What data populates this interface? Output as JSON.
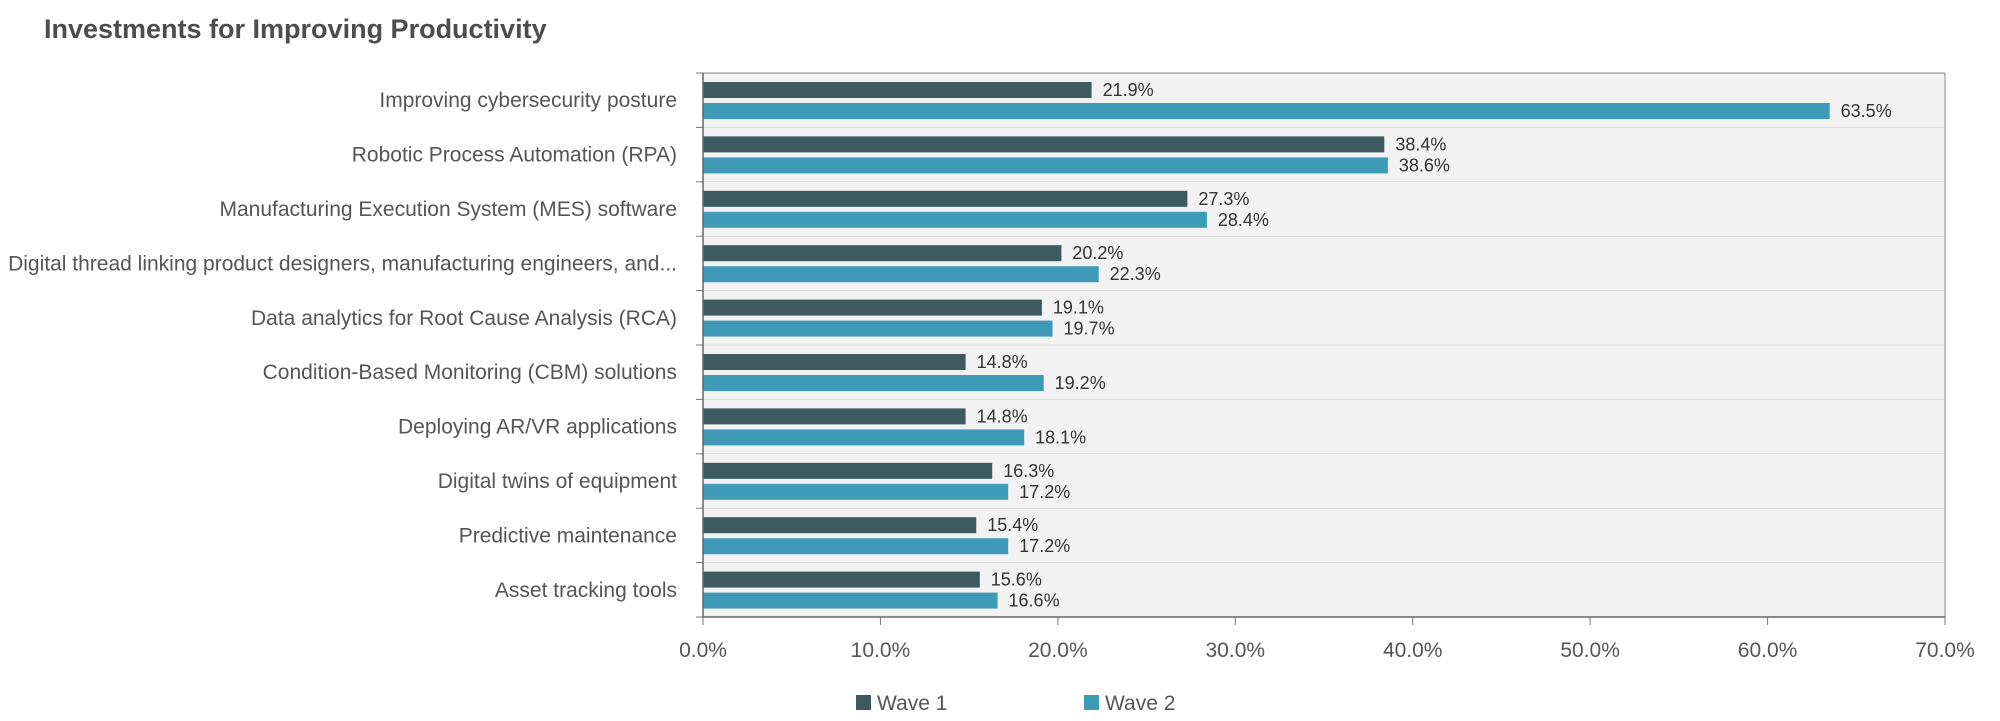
{
  "chart_data": {
    "type": "bar",
    "orientation": "horizontal",
    "title": "Investments for Improving Productivity",
    "categories": [
      "Improving cybersecurity posture",
      "Robotic Process Automation (RPA)",
      "Manufacturing Execution System (MES) software",
      "Digital thread linking product designers, manufacturing engineers, and...",
      "Data analytics for Root Cause Analysis (RCA)",
      "Condition-Based Monitoring (CBM) solutions",
      "Deploying AR/VR applications",
      "Digital twins of equipment",
      "Predictive maintenance",
      "Asset tracking tools"
    ],
    "series": [
      {
        "name": "Wave 1",
        "color": "#3d5a60",
        "values": [
          21.9,
          38.4,
          27.3,
          20.2,
          19.1,
          14.8,
          14.8,
          16.3,
          15.4,
          15.6
        ],
        "labels": [
          "21.9%",
          "38.4%",
          "27.3%",
          "20.2%",
          "19.1%",
          "14.8%",
          "14.8%",
          "16.3%",
          "15.4%",
          "15.6%"
        ]
      },
      {
        "name": "Wave 2",
        "color": "#3f9ab8",
        "values": [
          63.5,
          38.6,
          28.4,
          22.3,
          19.7,
          19.2,
          18.1,
          17.2,
          17.2,
          16.6
        ],
        "labels": [
          "63.5%",
          "38.6%",
          "28.4%",
          "22.3%",
          "19.7%",
          "19.2%",
          "18.1%",
          "17.2%",
          "17.2%",
          "16.6%"
        ]
      }
    ],
    "xlim": [
      0,
      70
    ],
    "x_ticks": [
      0,
      10,
      20,
      30,
      40,
      50,
      60,
      70
    ],
    "x_tick_labels": [
      "0.0%",
      "10.0%",
      "20.0%",
      "30.0%",
      "40.0%",
      "50.0%",
      "60.0%",
      "70.0%"
    ],
    "xlabel": "",
    "ylabel": "",
    "grid": "horizontal separators between categories",
    "legend_position": "bottom",
    "plot_background": "#f2f2f2"
  }
}
